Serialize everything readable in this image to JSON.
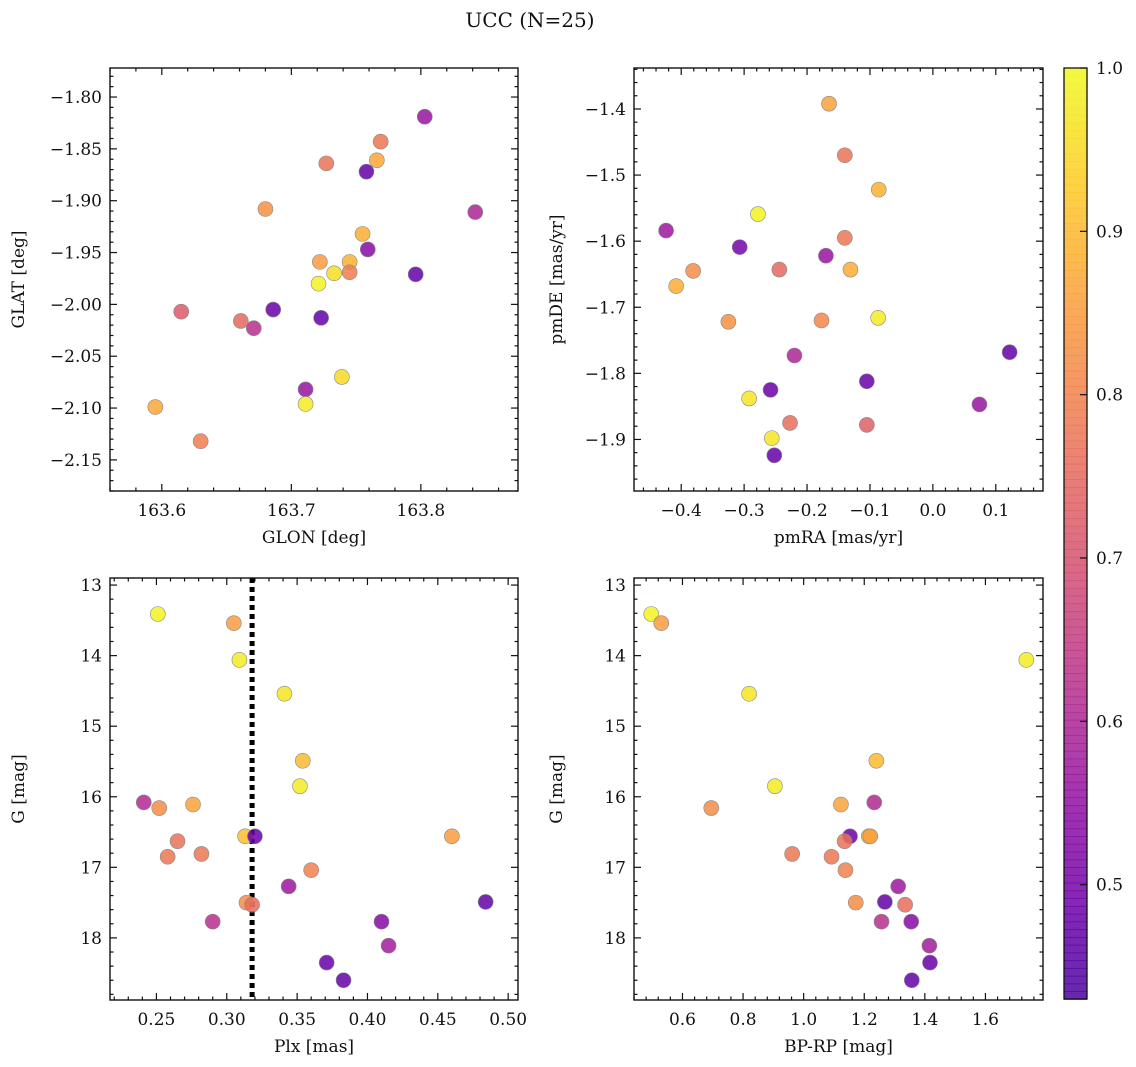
{
  "figure": {
    "title": "UCC (N=25)",
    "colorbar": {
      "colormap": "plasma",
      "min": 0.43,
      "max": 1.0,
      "ticks": [
        0.5,
        0.6,
        0.7,
        0.8,
        0.9,
        1.0
      ],
      "tick_labels": [
        "0.5",
        "0.6",
        "0.7",
        "0.8",
        "0.9",
        "1.0"
      ]
    },
    "marker_style": {
      "fill_alpha": 0.85,
      "edge_color": "#888888"
    }
  },
  "chart_data": [
    {
      "type": "scatter",
      "xlabel": "GLON [deg]",
      "ylabel": "GLAT [deg]",
      "xlim": [
        163.56,
        163.875
      ],
      "ylim": [
        -2.18,
        -1.772
      ],
      "x_ticks": [
        163.6,
        163.7,
        163.8
      ],
      "x_tick_labels": [
        "163.6",
        "163.7",
        "163.8"
      ],
      "y_ticks": [
        -1.8,
        -1.85,
        -1.9,
        -1.95,
        -2.0,
        -2.05,
        -2.1,
        -2.15
      ],
      "y_tick_labels": [
        "−1.80",
        "−1.85",
        "−1.90",
        "−1.95",
        "−2.00",
        "−2.05",
        "−2.10",
        "−2.15"
      ],
      "points": [
        {
          "x": 163.803,
          "y": -1.819,
          "c": 0.56
        },
        {
          "x": 163.769,
          "y": -1.843,
          "c": 0.78
        },
        {
          "x": 163.727,
          "y": -1.864,
          "c": 0.77
        },
        {
          "x": 163.766,
          "y": -1.861,
          "c": 0.87
        },
        {
          "x": 163.758,
          "y": -1.872,
          "c": 0.47
        },
        {
          "x": 163.68,
          "y": -1.908,
          "c": 0.83
        },
        {
          "x": 163.842,
          "y": -1.911,
          "c": 0.6
        },
        {
          "x": 163.755,
          "y": -1.932,
          "c": 0.88
        },
        {
          "x": 163.759,
          "y": -1.947,
          "c": 0.53
        },
        {
          "x": 163.722,
          "y": -1.959,
          "c": 0.85
        },
        {
          "x": 163.745,
          "y": -1.959,
          "c": 0.89
        },
        {
          "x": 163.745,
          "y": -1.969,
          "c": 0.79
        },
        {
          "x": 163.733,
          "y": -1.97,
          "c": 0.96
        },
        {
          "x": 163.796,
          "y": -1.971,
          "c": 0.47
        },
        {
          "x": 163.721,
          "y": -1.98,
          "c": 0.99
        },
        {
          "x": 163.686,
          "y": -2.005,
          "c": 0.48
        },
        {
          "x": 163.615,
          "y": -2.007,
          "c": 0.72
        },
        {
          "x": 163.723,
          "y": -2.013,
          "c": 0.47
        },
        {
          "x": 163.661,
          "y": -2.016,
          "c": 0.75
        },
        {
          "x": 163.671,
          "y": -2.023,
          "c": 0.62
        },
        {
          "x": 163.739,
          "y": -2.07,
          "c": 0.95
        },
        {
          "x": 163.711,
          "y": -2.082,
          "c": 0.56
        },
        {
          "x": 163.711,
          "y": -2.096,
          "c": 0.98
        },
        {
          "x": 163.595,
          "y": -2.099,
          "c": 0.87
        },
        {
          "x": 163.63,
          "y": -2.132,
          "c": 0.79
        }
      ]
    },
    {
      "type": "scatter",
      "xlabel": "pmRA [mas/yr]",
      "ylabel": "pmDE [mas/yr]",
      "xlim": [
        -0.475,
        0.175
      ],
      "ylim": [
        -1.978,
        -1.338
      ],
      "x_ticks": [
        -0.4,
        -0.3,
        -0.2,
        -0.1,
        0.0,
        0.1
      ],
      "x_tick_labels": [
        "−0.4",
        "−0.3",
        "−0.2",
        "−0.1",
        "0.0",
        "0.1"
      ],
      "y_ticks": [
        -1.4,
        -1.5,
        -1.6,
        -1.7,
        -1.8,
        -1.9
      ],
      "y_tick_labels": [
        "−1.4",
        "−1.5",
        "−1.6",
        "−1.7",
        "−1.8",
        "−1.9"
      ],
      "points": [
        {
          "x": -0.165,
          "y": -1.392,
          "c": 0.86
        },
        {
          "x": -0.14,
          "y": -1.47,
          "c": 0.77
        },
        {
          "x": -0.086,
          "y": -1.522,
          "c": 0.89
        },
        {
          "x": -0.278,
          "y": -1.559,
          "c": 0.99
        },
        {
          "x": -0.424,
          "y": -1.584,
          "c": 0.57
        },
        {
          "x": -0.14,
          "y": -1.595,
          "c": 0.78
        },
        {
          "x": -0.307,
          "y": -1.609,
          "c": 0.5
        },
        {
          "x": -0.17,
          "y": -1.622,
          "c": 0.56
        },
        {
          "x": -0.381,
          "y": -1.645,
          "c": 0.82
        },
        {
          "x": -0.244,
          "y": -1.643,
          "c": 0.75
        },
        {
          "x": -0.131,
          "y": -1.643,
          "c": 0.88
        },
        {
          "x": -0.408,
          "y": -1.668,
          "c": 0.88
        },
        {
          "x": -0.087,
          "y": -1.716,
          "c": 0.98
        },
        {
          "x": -0.325,
          "y": -1.722,
          "c": 0.83
        },
        {
          "x": -0.177,
          "y": -1.72,
          "c": 0.81
        },
        {
          "x": 0.122,
          "y": -1.768,
          "c": 0.47
        },
        {
          "x": -0.22,
          "y": -1.773,
          "c": 0.6
        },
        {
          "x": -0.105,
          "y": -1.812,
          "c": 0.48
        },
        {
          "x": -0.258,
          "y": -1.825,
          "c": 0.48
        },
        {
          "x": -0.292,
          "y": -1.838,
          "c": 0.97
        },
        {
          "x": 0.074,
          "y": -1.847,
          "c": 0.56
        },
        {
          "x": -0.227,
          "y": -1.875,
          "c": 0.76
        },
        {
          "x": -0.105,
          "y": -1.878,
          "c": 0.73
        },
        {
          "x": -0.256,
          "y": -1.898,
          "c": 0.97
        },
        {
          "x": -0.252,
          "y": -1.924,
          "c": 0.47
        }
      ]
    },
    {
      "type": "scatter",
      "xlabel": "Plx [mas]",
      "ylabel": "G [mag]",
      "xlim": [
        0.217,
        0.507
      ],
      "ylim": [
        18.88,
        12.9
      ],
      "y_inverted": true,
      "x_ticks": [
        0.25,
        0.3,
        0.35,
        0.4,
        0.45,
        0.5
      ],
      "x_tick_labels": [
        "0.25",
        "0.30",
        "0.35",
        "0.40",
        "0.45",
        "0.50"
      ],
      "y_ticks": [
        13,
        14,
        15,
        16,
        17,
        18
      ],
      "y_tick_labels": [
        "13",
        "14",
        "15",
        "16",
        "17",
        "18"
      ],
      "vline": {
        "x": 0.318,
        "style": "dotted",
        "color": "#000000"
      },
      "points": [
        {
          "x": 0.251,
          "y": 13.41,
          "c": 0.99
        },
        {
          "x": 0.305,
          "y": 13.54,
          "c": 0.85
        },
        {
          "x": 0.309,
          "y": 14.06,
          "c": 0.98
        },
        {
          "x": 0.341,
          "y": 14.54,
          "c": 0.97
        },
        {
          "x": 0.354,
          "y": 15.49,
          "c": 0.9
        },
        {
          "x": 0.352,
          "y": 15.85,
          "c": 0.98
        },
        {
          "x": 0.241,
          "y": 16.08,
          "c": 0.61
        },
        {
          "x": 0.276,
          "y": 16.11,
          "c": 0.86
        },
        {
          "x": 0.252,
          "y": 16.16,
          "c": 0.82
        },
        {
          "x": 0.313,
          "y": 16.56,
          "c": 0.91
        },
        {
          "x": 0.32,
          "y": 16.56,
          "c": 0.48
        },
        {
          "x": 0.46,
          "y": 16.56,
          "c": 0.85
        },
        {
          "x": 0.265,
          "y": 16.63,
          "c": 0.77
        },
        {
          "x": 0.282,
          "y": 16.81,
          "c": 0.78
        },
        {
          "x": 0.258,
          "y": 16.85,
          "c": 0.78
        },
        {
          "x": 0.36,
          "y": 17.04,
          "c": 0.8
        },
        {
          "x": 0.344,
          "y": 17.27,
          "c": 0.57
        },
        {
          "x": 0.484,
          "y": 17.49,
          "c": 0.47
        },
        {
          "x": 0.314,
          "y": 17.5,
          "c": 0.82
        },
        {
          "x": 0.318,
          "y": 17.53,
          "c": 0.76
        },
        {
          "x": 0.29,
          "y": 17.77,
          "c": 0.62
        },
        {
          "x": 0.41,
          "y": 17.77,
          "c": 0.53
        },
        {
          "x": 0.415,
          "y": 18.11,
          "c": 0.58
        },
        {
          "x": 0.371,
          "y": 18.35,
          "c": 0.48
        },
        {
          "x": 0.383,
          "y": 18.6,
          "c": 0.47
        }
      ]
    },
    {
      "type": "scatter",
      "xlabel": "BP-RP [mag]",
      "ylabel": "G [mag]",
      "xlim": [
        0.44,
        1.79
      ],
      "ylim": [
        18.88,
        12.9
      ],
      "y_inverted": true,
      "x_ticks": [
        0.6,
        0.8,
        1.0,
        1.2,
        1.4,
        1.6
      ],
      "x_tick_labels": [
        "0.6",
        "0.8",
        "1.0",
        "1.2",
        "1.4",
        "1.6"
      ],
      "y_ticks": [
        13,
        14,
        15,
        16,
        17,
        18
      ],
      "y_tick_labels": [
        "13",
        "14",
        "15",
        "16",
        "17",
        "18"
      ],
      "points": [
        {
          "x": 0.497,
          "y": 13.41,
          "c": 0.99
        },
        {
          "x": 0.53,
          "y": 13.54,
          "c": 0.85
        },
        {
          "x": 1.735,
          "y": 14.06,
          "c": 0.98
        },
        {
          "x": 0.82,
          "y": 14.54,
          "c": 0.97
        },
        {
          "x": 1.24,
          "y": 15.49,
          "c": 0.9
        },
        {
          "x": 0.905,
          "y": 15.85,
          "c": 0.98
        },
        {
          "x": 1.233,
          "y": 16.08,
          "c": 0.61
        },
        {
          "x": 1.123,
          "y": 16.11,
          "c": 0.86
        },
        {
          "x": 0.695,
          "y": 16.16,
          "c": 0.82
        },
        {
          "x": 1.215,
          "y": 16.56,
          "c": 0.91
        },
        {
          "x": 1.153,
          "y": 16.56,
          "c": 0.48
        },
        {
          "x": 1.22,
          "y": 16.56,
          "c": 0.85
        },
        {
          "x": 1.135,
          "y": 16.63,
          "c": 0.77
        },
        {
          "x": 0.962,
          "y": 16.81,
          "c": 0.78
        },
        {
          "x": 1.092,
          "y": 16.85,
          "c": 0.78
        },
        {
          "x": 1.138,
          "y": 17.04,
          "c": 0.8
        },
        {
          "x": 1.312,
          "y": 17.27,
          "c": 0.57
        },
        {
          "x": 1.268,
          "y": 17.49,
          "c": 0.47
        },
        {
          "x": 1.172,
          "y": 17.5,
          "c": 0.82
        },
        {
          "x": 1.335,
          "y": 17.53,
          "c": 0.76
        },
        {
          "x": 1.257,
          "y": 17.77,
          "c": 0.62
        },
        {
          "x": 1.355,
          "y": 17.77,
          "c": 0.53
        },
        {
          "x": 1.415,
          "y": 18.11,
          "c": 0.58
        },
        {
          "x": 1.417,
          "y": 18.35,
          "c": 0.48
        },
        {
          "x": 1.357,
          "y": 18.6,
          "c": 0.47
        }
      ]
    }
  ]
}
